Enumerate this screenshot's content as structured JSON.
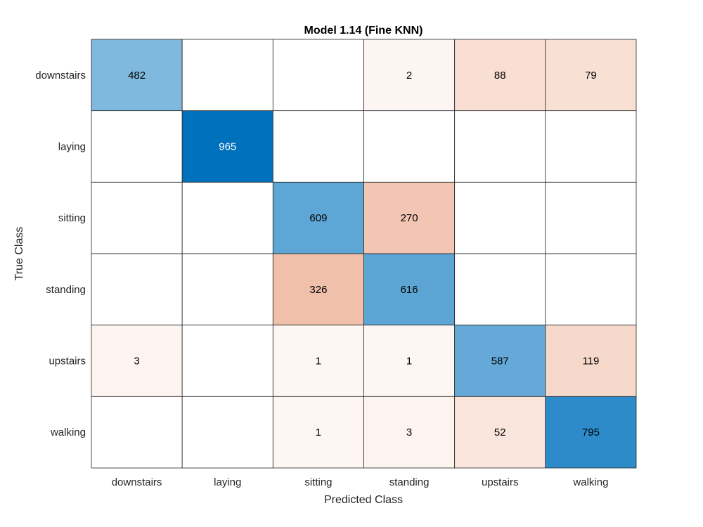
{
  "chart_data": {
    "type": "heatmap",
    "title": "Model 1.14 (Fine KNN)",
    "xlabel": "Predicted Class",
    "ylabel": "True Class",
    "classes": [
      "downstairs",
      "laying",
      "sitting",
      "standing",
      "upstairs",
      "walking"
    ],
    "matrix": [
      [
        482,
        null,
        null,
        2,
        88,
        79
      ],
      [
        null,
        965,
        null,
        null,
        null,
        null
      ],
      [
        null,
        null,
        609,
        270,
        null,
        null
      ],
      [
        null,
        null,
        326,
        616,
        null,
        null
      ],
      [
        3,
        null,
        1,
        1,
        587,
        119
      ],
      [
        null,
        null,
        1,
        3,
        52,
        795
      ]
    ],
    "colors": {
      "correct_max": "#0072BD",
      "correct_min": "#ffffff",
      "error_max": "#D95319",
      "error_min": "#ffffff",
      "grid": "#262626"
    }
  }
}
